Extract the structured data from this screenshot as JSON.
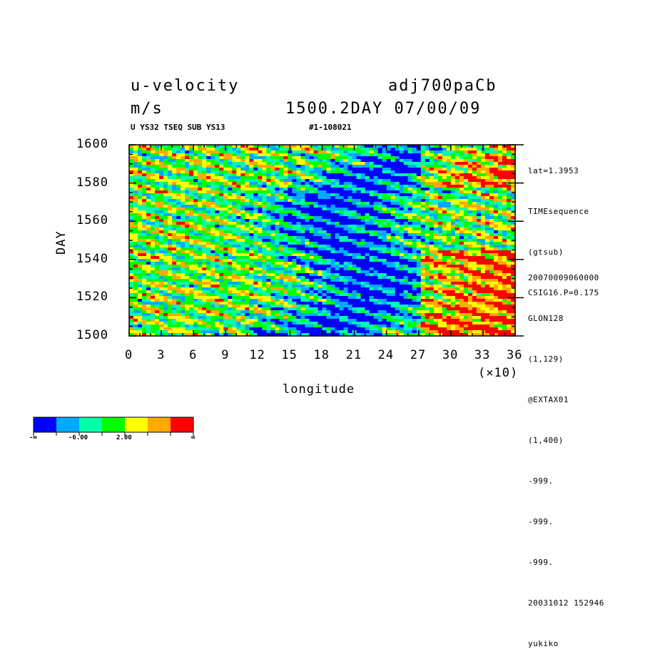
{
  "header": {
    "variable": "u-velocity",
    "units": "m/s",
    "experiment": "adj700paCb",
    "time": "1500.2DAY 07/00/09",
    "subtitle": "U YS32 TSEQ SUB YS13",
    "run_id": "#1-108021"
  },
  "info_top": [
    "lat=1.3953",
    "TIMEsequence",
    "(gtsub)",
    "CSIG16.P=0.175"
  ],
  "info_bottom": [
    "20070009060000",
    "GLON128",
    "(1,129)",
    "@EXTAX01",
    "(1,400)",
    "-999.",
    "-999.",
    "-999.",
    "20031012 152946",
    "yukiko"
  ],
  "chart_data": {
    "type": "heatmap",
    "title": "u-velocity",
    "xlabel": "longitude",
    "ylabel": "DAY",
    "x_multiplier": "(×10)",
    "xlim": [
      0,
      36
    ],
    "ylim": [
      1500,
      1600
    ],
    "xticks": [
      "0",
      "3",
      "6",
      "9",
      "12",
      "15",
      "18",
      "21",
      "24",
      "27",
      "30",
      "33",
      "36"
    ],
    "yticks": [
      "1500",
      "1520",
      "1540",
      "1560",
      "1580",
      "1600"
    ],
    "colorbar": {
      "colors": [
        "#0000ff",
        "#00aaff",
        "#00ffaa",
        "#00ff00",
        "#ffff00",
        "#ffaa00",
        "#ff0000"
      ],
      "labels": [
        "-∞",
        "-6.00",
        "2.00",
        "∞"
      ]
    },
    "regions": [
      {
        "x": [
          10,
          26
        ],
        "y": [
          1500,
          1600
        ],
        "level": 0,
        "note": "dominant negative (blue) band drifting eastward"
      },
      {
        "x": [
          28,
          36
        ],
        "y": [
          1500,
          1545
        ],
        "level": 6,
        "note": "strong positive (red) region"
      },
      {
        "x": [
          28,
          36
        ],
        "y": [
          1580,
          1600
        ],
        "level": 6,
        "note": "strong positive (red) region"
      },
      {
        "x": [
          0,
          10
        ],
        "y": [
          1500,
          1600
        ],
        "level": 4,
        "note": "mixed positive streaks"
      }
    ]
  }
}
